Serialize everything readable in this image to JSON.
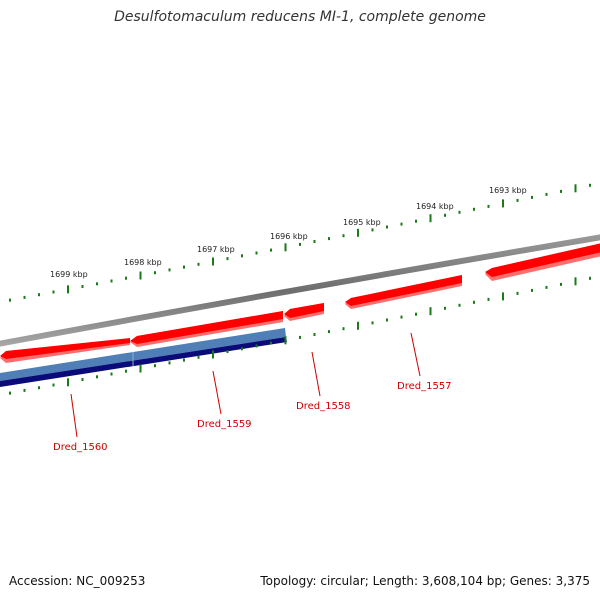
{
  "title": "Desulfotomaculum reducens MI-1, complete genome",
  "footer": {
    "accession": "Accession: NC_009253",
    "stats": "Topology: circular; Length: 3,608,104 bp; Genes: 3,375"
  },
  "scale_labels": [
    "1699 kbp",
    "1698 kbp",
    "1697 kbp",
    "1696 kbp",
    "1695 kbp",
    "1694 kbp",
    "1693 kbp"
  ],
  "gene_labels": [
    "Dred_1560",
    "Dred_1559",
    "Dred_1558",
    "Dred_1557"
  ],
  "colors": {
    "forward_gene": "#ff0000",
    "forward_gene_shadow": "#ff6e6e",
    "orf_light": "#4f7fb6",
    "orf_dark": "#0a0a78",
    "backbone": "#808080",
    "ticks": "#1a7a1a",
    "label": "#cc0000"
  }
}
